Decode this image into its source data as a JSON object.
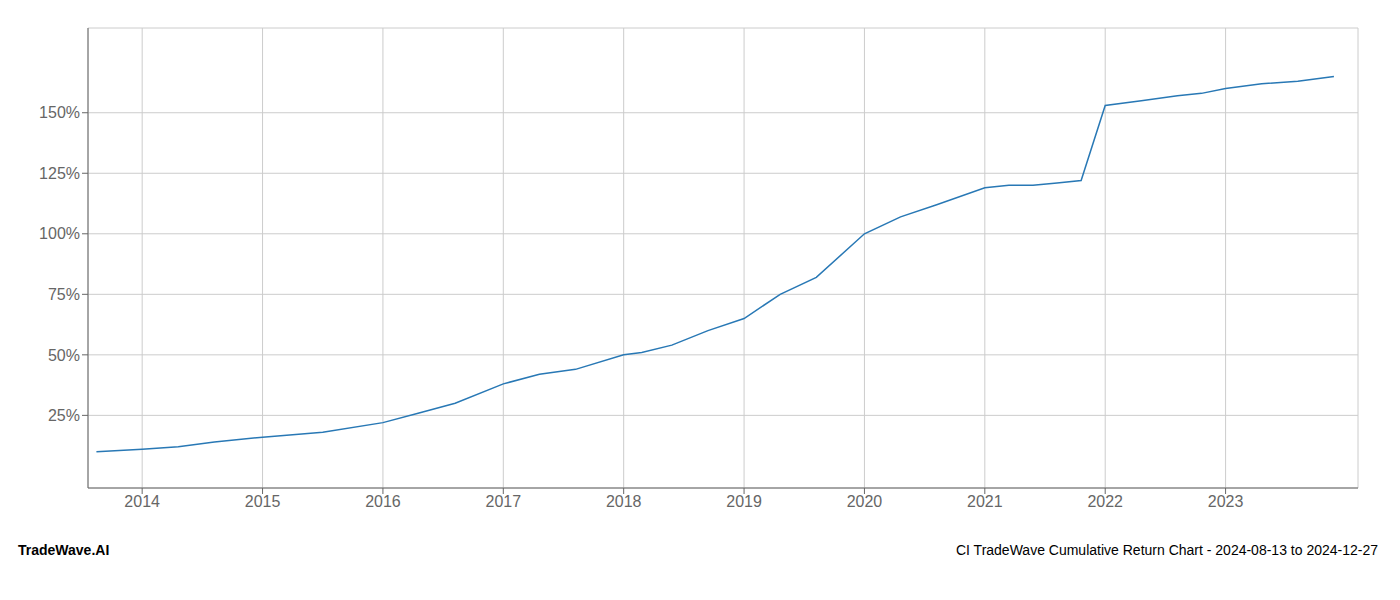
{
  "chart_data": {
    "type": "line",
    "title": "CI TradeWave Cumulative Return Chart - 2024-08-13 to 2024-12-27",
    "annotations": [
      "TradeWave.AI"
    ],
    "x": [
      2013.62,
      2014.0,
      2014.3,
      2014.6,
      2015.0,
      2015.5,
      2016.0,
      2016.3,
      2016.6,
      2017.0,
      2017.3,
      2017.6,
      2018.0,
      2018.15,
      2018.4,
      2018.7,
      2019.0,
      2019.3,
      2019.6,
      2020.0,
      2020.3,
      2020.6,
      2021.0,
      2021.2,
      2021.4,
      2021.6,
      2021.8,
      2022.0,
      2022.3,
      2022.6,
      2022.8,
      2023.0,
      2023.3,
      2023.6,
      2023.9
    ],
    "values": [
      10,
      11,
      12,
      14,
      16,
      18,
      22,
      26,
      30,
      38,
      42,
      44,
      50,
      51,
      54,
      60,
      65,
      75,
      82,
      100,
      107,
      112,
      119,
      120,
      120,
      121,
      122,
      153,
      155,
      157,
      158,
      160,
      162,
      163,
      165
    ],
    "color": "#2878b5",
    "xlim": [
      2013.55,
      2024.1
    ],
    "xticks": [
      2014,
      2015,
      2016,
      2017,
      2018,
      2019,
      2020,
      2021,
      2022,
      2023
    ],
    "ylim": [
      -5,
      185
    ],
    "yticks": [
      {
        "value": 25,
        "label": "25%"
      },
      {
        "value": 50,
        "label": "50%"
      },
      {
        "value": 75,
        "label": "75%"
      },
      {
        "value": 100,
        "label": "100%"
      },
      {
        "value": 125,
        "label": "125%"
      },
      {
        "value": 150,
        "label": "150%"
      }
    ],
    "grid": true
  }
}
